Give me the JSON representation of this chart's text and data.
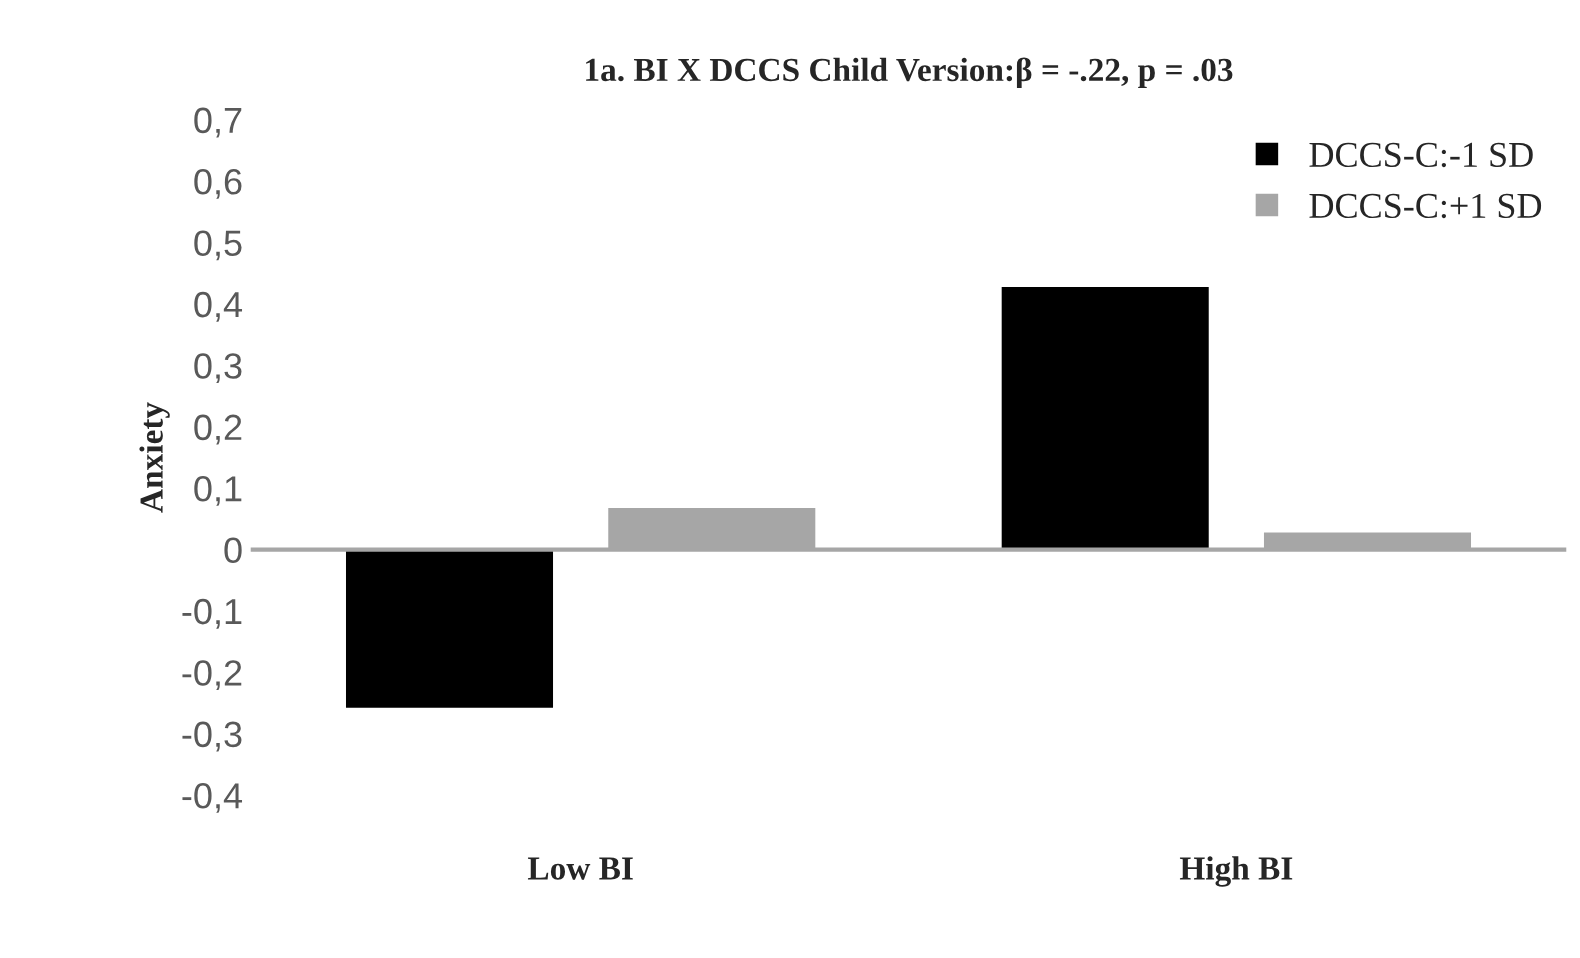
{
  "chart_data": {
    "type": "bar",
    "title": "1a. BI X DCCS Child Version:β = -.22, p = .03",
    "ylabel": "Anxiety",
    "categories": [
      "Low BI",
      "High BI"
    ],
    "series": [
      {
        "name": "DCCS-C:-1 SD",
        "color": "#000000",
        "values": [
          -0.26,
          0.43
        ]
      },
      {
        "name": "DCCS-C:+1 SD",
        "color": "#a6a6a6",
        "values": [
          0.07,
          0.03
        ]
      }
    ],
    "ylim": [
      -0.4,
      0.7
    ],
    "yticks": [
      {
        "value": -0.4,
        "label": "-0,4"
      },
      {
        "value": -0.3,
        "label": "-0,3"
      },
      {
        "value": -0.2,
        "label": "-0,2"
      },
      {
        "value": -0.1,
        "label": "-0,1"
      },
      {
        "value": 0,
        "label": "0"
      },
      {
        "value": 0.1,
        "label": "0,1"
      },
      {
        "value": 0.2,
        "label": "0,2"
      },
      {
        "value": 0.3,
        "label": "0,3"
      },
      {
        "value": 0.4,
        "label": "0,4"
      },
      {
        "value": 0.5,
        "label": "0,5"
      },
      {
        "value": 0.6,
        "label": "0,6"
      },
      {
        "value": 0.7,
        "label": "0,7"
      }
    ],
    "legend": "top right"
  }
}
